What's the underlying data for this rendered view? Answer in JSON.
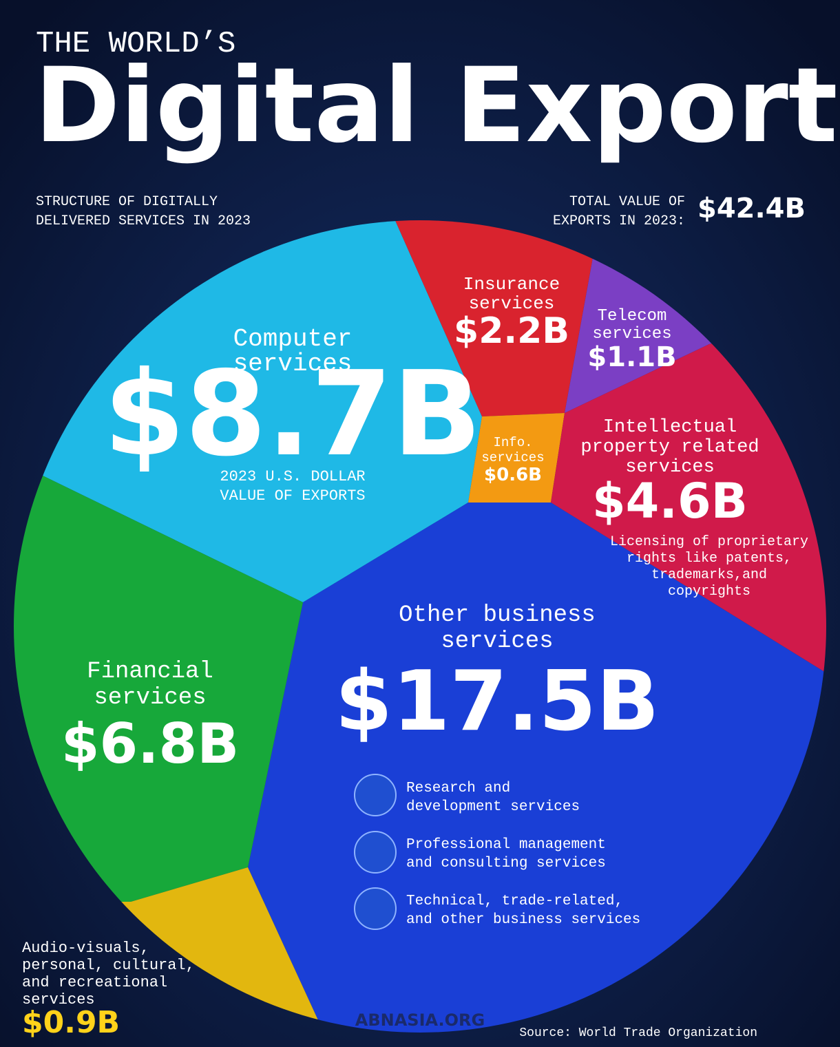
{
  "header": {
    "kicker": "THE WORLD’S",
    "title": "Digital Exports",
    "subtitle": [
      "STRUCTURE OF DIGITALLY",
      "DELIVERED SERVICES IN 2023"
    ],
    "total_label": [
      "TOTAL VALUE OF",
      "EXPORTS IN 2023:"
    ],
    "total_value": "$42.4B"
  },
  "segments": [
    {
      "label": [
        "Computer",
        "services"
      ],
      "value": "$8.7B",
      "note": [
        "2023 U.S. DOLLAR",
        "VALUE OF EXPORTS"
      ]
    },
    {
      "label": [
        "Insurance",
        "services"
      ],
      "value": "$2.2B"
    },
    {
      "label": [
        "Telecom",
        "services"
      ],
      "value": "$1.1B"
    },
    {
      "label": [
        "Info.",
        "services"
      ],
      "value": "$0.6B"
    },
    {
      "label": [
        "Intellectual",
        "property related",
        "services"
      ],
      "value": "$4.6B",
      "note": [
        "Licensing of proprietary",
        "rights like patents,",
        "trademarks,and",
        "copyrights"
      ]
    },
    {
      "label": [
        "Other business",
        "services"
      ],
      "value": "$17.5B",
      "items": [
        [
          "Research and",
          "development services"
        ],
        [
          "Professional management",
          "and consulting services"
        ],
        [
          "Technical, trade-related,",
          "and other business services"
        ]
      ]
    },
    {
      "label": [
        "Financial",
        "services"
      ],
      "value": "$6.8B"
    },
    {
      "label": [
        "Audio-visuals,",
        "personal, cultural,",
        "and recreational",
        "services"
      ],
      "value": "$0.9B"
    }
  ],
  "footer": {
    "watermark": "ABNASIA.ORG",
    "source": "Source: World Trade Organization"
  }
}
